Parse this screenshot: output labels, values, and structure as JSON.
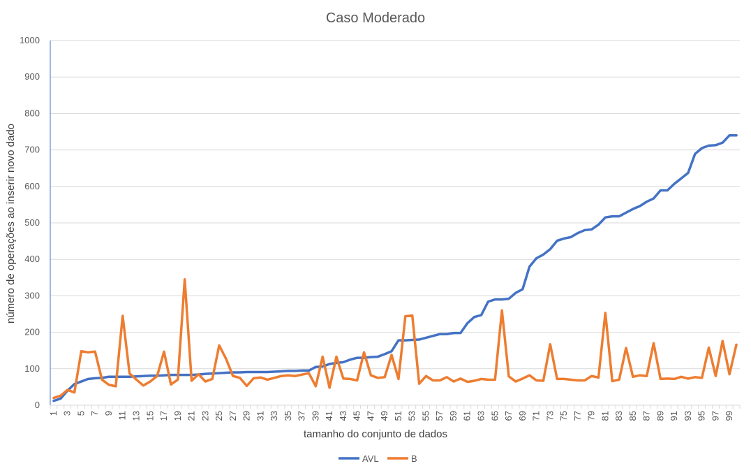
{
  "chart_data": {
    "type": "line",
    "title": "Caso Moderado",
    "xlabel": "tamanho do conjunto de dados",
    "ylabel": "número de operações ao inserir novo dado",
    "ylim": [
      0,
      1000
    ],
    "yticks": [
      0,
      100,
      200,
      300,
      400,
      500,
      600,
      700,
      800,
      900,
      1000
    ],
    "x": [
      1,
      2,
      3,
      4,
      5,
      6,
      7,
      8,
      9,
      10,
      11,
      12,
      13,
      14,
      15,
      16,
      17,
      18,
      19,
      20,
      21,
      22,
      23,
      24,
      25,
      26,
      27,
      28,
      29,
      30,
      31,
      32,
      33,
      34,
      35,
      36,
      37,
      38,
      39,
      40,
      41,
      42,
      43,
      44,
      45,
      46,
      47,
      48,
      49,
      50,
      51,
      52,
      53,
      54,
      55,
      56,
      57,
      58,
      59,
      60,
      61,
      62,
      63,
      64,
      65,
      66,
      67,
      68,
      69,
      70,
      71,
      72,
      73,
      74,
      75,
      76,
      77,
      78,
      79,
      80,
      81,
      82,
      83,
      84,
      85,
      86,
      87,
      88,
      89,
      90,
      91,
      92,
      93,
      94,
      95,
      96,
      97,
      98,
      99,
      100
    ],
    "xtick_labels": [
      "1",
      "3",
      "5",
      "7",
      "9",
      "11",
      "13",
      "15",
      "17",
      "19",
      "21",
      "23",
      "25",
      "27",
      "29",
      "31",
      "33",
      "35",
      "37",
      "39",
      "41",
      "43",
      "45",
      "47",
      "49",
      "51",
      "53",
      "55",
      "57",
      "59",
      "61",
      "63",
      "65",
      "67",
      "69",
      "71",
      "73",
      "75",
      "77",
      "79",
      "81",
      "83",
      "85",
      "87",
      "89",
      "91",
      "93",
      "95",
      "97",
      "99"
    ],
    "grid": true,
    "legend_position": "bottom",
    "series": [
      {
        "name": "AVL",
        "color": "#4472c4",
        "values": [
          12,
          18,
          40,
          58,
          65,
          72,
          74,
          75,
          78,
          78,
          78,
          78,
          79,
          80,
          81,
          81,
          82,
          83,
          83,
          83,
          83,
          84,
          86,
          87,
          88,
          89,
          90,
          90,
          91,
          91,
          91,
          91,
          92,
          93,
          94,
          94,
          95,
          95,
          105,
          106,
          113,
          116,
          118,
          125,
          130,
          130,
          132,
          133,
          140,
          148,
          178,
          178,
          179,
          180,
          185,
          190,
          195,
          195,
          198,
          198,
          225,
          242,
          247,
          284,
          290,
          290,
          292,
          308,
          318,
          380,
          403,
          413,
          428,
          451,
          457,
          461,
          472,
          480,
          482,
          495,
          515,
          518,
          518,
          528,
          538,
          546,
          558,
          567,
          589,
          589,
          607,
          622,
          637,
          689,
          705,
          712,
          713,
          720,
          740,
          740
        ]
      },
      {
        "name": "B",
        "color": "#ed7d31",
        "values": [
          20,
          26,
          42,
          35,
          148,
          145,
          147,
          70,
          56,
          52,
          245,
          87,
          70,
          54,
          65,
          80,
          147,
          57,
          70,
          345,
          67,
          85,
          65,
          72,
          164,
          127,
          80,
          75,
          53,
          74,
          76,
          70,
          75,
          80,
          82,
          80,
          84,
          88,
          52,
          133,
          48,
          133,
          73,
          72,
          68,
          145,
          82,
          75,
          77,
          138,
          72,
          244,
          246,
          59,
          80,
          68,
          68,
          77,
          65,
          73,
          64,
          67,
          72,
          70,
          70,
          260,
          79,
          65,
          73,
          82,
          68,
          67,
          167,
          72,
          72,
          70,
          68,
          68,
          80,
          76,
          253,
          66,
          70,
          157,
          78,
          82,
          80,
          170,
          72,
          73,
          72,
          78,
          73,
          77,
          75,
          158,
          80,
          176,
          85,
          166
        ]
      }
    ]
  }
}
